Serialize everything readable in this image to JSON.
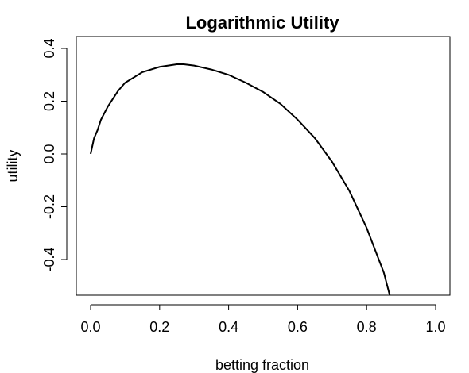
{
  "chart_data": {
    "type": "line",
    "title": "Logarithmic Utility",
    "xlabel": "betting fraction",
    "ylabel": "utility",
    "xlim": [
      0.0,
      1.0
    ],
    "ylim": [
      -0.55,
      0.44
    ],
    "x_ticks": [
      "0.0",
      "0.2",
      "0.4",
      "0.6",
      "0.8",
      "1.0"
    ],
    "y_ticks": [
      "-0.4",
      "-0.2",
      "0.0",
      "0.2",
      "0.4"
    ],
    "grid": false,
    "colors": {
      "line": "#000000"
    },
    "series": [
      {
        "x": [
          0.0,
          0.01,
          0.02,
          0.03,
          0.05,
          0.08,
          0.1,
          0.15,
          0.2,
          0.25,
          0.27,
          0.3,
          0.35,
          0.4,
          0.45,
          0.5,
          0.55,
          0.6,
          0.65,
          0.7,
          0.75,
          0.8,
          0.85,
          0.867
        ],
        "y": [
          0.0,
          0.06,
          0.09,
          0.13,
          0.18,
          0.24,
          0.27,
          0.31,
          0.33,
          0.34,
          0.34,
          0.335,
          0.32,
          0.3,
          0.27,
          0.235,
          0.19,
          0.13,
          0.06,
          -0.03,
          -0.14,
          -0.28,
          -0.45,
          -0.54
        ]
      }
    ]
  }
}
